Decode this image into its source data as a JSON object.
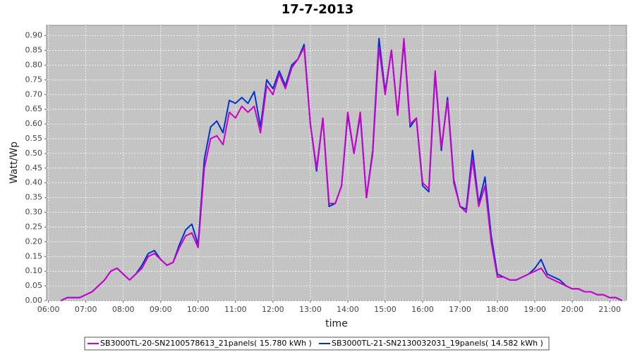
{
  "chart_data": {
    "type": "line",
    "title": "17-7-2013",
    "x_label": "time",
    "y_label": "Watt/Wp",
    "x": [
      "06:20",
      "06:30",
      "06:40",
      "06:50",
      "07:00",
      "07:10",
      "07:20",
      "07:30",
      "07:40",
      "07:50",
      "08:00",
      "08:10",
      "08:20",
      "08:30",
      "08:40",
      "08:50",
      "09:00",
      "09:10",
      "09:20",
      "09:30",
      "09:40",
      "09:50",
      "10:00",
      "10:10",
      "10:20",
      "10:30",
      "10:40",
      "10:50",
      "11:00",
      "11:10",
      "11:20",
      "11:30",
      "11:40",
      "11:50",
      "12:00",
      "12:10",
      "12:20",
      "12:30",
      "12:40",
      "12:50",
      "13:00",
      "13:10",
      "13:20",
      "13:30",
      "13:40",
      "13:50",
      "14:00",
      "14:10",
      "14:20",
      "14:30",
      "14:40",
      "14:50",
      "15:00",
      "15:10",
      "15:20",
      "15:30",
      "15:40",
      "15:50",
      "16:00",
      "16:10",
      "16:20",
      "16:30",
      "16:40",
      "16:50",
      "17:00",
      "17:10",
      "17:20",
      "17:30",
      "17:40",
      "17:50",
      "18:00",
      "18:10",
      "18:20",
      "18:30",
      "18:40",
      "18:50",
      "19:00",
      "19:10",
      "19:20",
      "19:30",
      "19:40",
      "19:50",
      "20:00",
      "20:10",
      "20:20",
      "20:30",
      "20:40",
      "20:50",
      "21:00",
      "21:10",
      "21:20"
    ],
    "series": [
      {
        "name": "SB3000TL-20-SN2100578613_21panels( 15.780 kWh )",
        "color": "#cc00cc",
        "values": [
          0.0,
          0.01,
          0.01,
          0.01,
          0.02,
          0.03,
          0.05,
          0.07,
          0.1,
          0.11,
          0.09,
          0.07,
          0.09,
          0.11,
          0.15,
          0.16,
          0.14,
          0.12,
          0.13,
          0.18,
          0.22,
          0.23,
          0.18,
          0.45,
          0.55,
          0.56,
          0.53,
          0.64,
          0.62,
          0.66,
          0.64,
          0.66,
          0.57,
          0.73,
          0.7,
          0.77,
          0.72,
          0.79,
          0.82,
          0.86,
          0.6,
          0.45,
          0.62,
          0.33,
          0.33,
          0.39,
          0.64,
          0.5,
          0.64,
          0.35,
          0.5,
          0.86,
          0.7,
          0.85,
          0.63,
          0.89,
          0.6,
          0.62,
          0.4,
          0.38,
          0.78,
          0.52,
          0.68,
          0.4,
          0.32,
          0.3,
          0.48,
          0.32,
          0.39,
          0.2,
          0.08,
          0.08,
          0.07,
          0.07,
          0.08,
          0.09,
          0.1,
          0.11,
          0.08,
          0.07,
          0.06,
          0.05,
          0.04,
          0.04,
          0.03,
          0.03,
          0.02,
          0.02,
          0.01,
          0.01,
          0.0
        ]
      },
      {
        "name": "SB3000TL-21-SN2130032031_19panels( 14.582 kWh )",
        "color": "#0033cc",
        "values": [
          0.0,
          0.01,
          0.01,
          0.01,
          0.02,
          0.03,
          0.05,
          0.07,
          0.1,
          0.11,
          0.09,
          0.07,
          0.09,
          0.12,
          0.16,
          0.17,
          0.14,
          0.12,
          0.13,
          0.19,
          0.24,
          0.26,
          0.19,
          0.48,
          0.59,
          0.61,
          0.57,
          0.68,
          0.67,
          0.69,
          0.67,
          0.71,
          0.59,
          0.75,
          0.72,
          0.78,
          0.73,
          0.8,
          0.82,
          0.87,
          0.6,
          0.44,
          0.62,
          0.32,
          0.33,
          0.39,
          0.63,
          0.5,
          0.63,
          0.35,
          0.51,
          0.89,
          0.71,
          0.85,
          0.63,
          0.88,
          0.59,
          0.62,
          0.39,
          0.37,
          0.77,
          0.51,
          0.69,
          0.41,
          0.32,
          0.31,
          0.51,
          0.33,
          0.42,
          0.22,
          0.09,
          0.08,
          0.07,
          0.07,
          0.08,
          0.09,
          0.11,
          0.14,
          0.09,
          0.08,
          0.07,
          0.05,
          0.04,
          0.04,
          0.03,
          0.03,
          0.02,
          0.02,
          0.01,
          0.01,
          0.0
        ]
      }
    ],
    "xlim": [
      "05:57",
      "21:27"
    ],
    "xticks": [
      "06:00",
      "07:00",
      "08:00",
      "09:00",
      "10:00",
      "11:00",
      "12:00",
      "13:00",
      "14:00",
      "15:00",
      "16:00",
      "17:00",
      "18:00",
      "19:00",
      "20:00",
      "21:00"
    ],
    "ylim": [
      0,
      0.935
    ],
    "yticks": [
      {
        "value": 0,
        "label": "0.00"
      },
      {
        "value": 0.05,
        "label": "0.05"
      },
      {
        "value": 0.1,
        "label": "0.10"
      },
      {
        "value": 0.15,
        "label": "0.15"
      },
      {
        "value": 0.2,
        "label": "0.20"
      },
      {
        "value": 0.25,
        "label": "0.25"
      },
      {
        "value": 0.3,
        "label": "0.30"
      },
      {
        "value": 0.35,
        "label": "0.35"
      },
      {
        "value": 0.4,
        "label": "0.40"
      },
      {
        "value": 0.45,
        "label": "0.45"
      },
      {
        "value": 0.5,
        "label": "0.50"
      },
      {
        "value": 0.55,
        "label": "0.55"
      },
      {
        "value": 0.6,
        "label": "0.60"
      },
      {
        "value": 0.65,
        "label": "0.65"
      },
      {
        "value": 0.7,
        "label": "0.70"
      },
      {
        "value": 0.75,
        "label": "0.75"
      },
      {
        "value": 0.8,
        "label": "0.80"
      },
      {
        "value": 0.85,
        "label": "0.85"
      },
      {
        "value": 0.9,
        "label": "0.90"
      }
    ],
    "grid": true,
    "legend": "bottom"
  }
}
